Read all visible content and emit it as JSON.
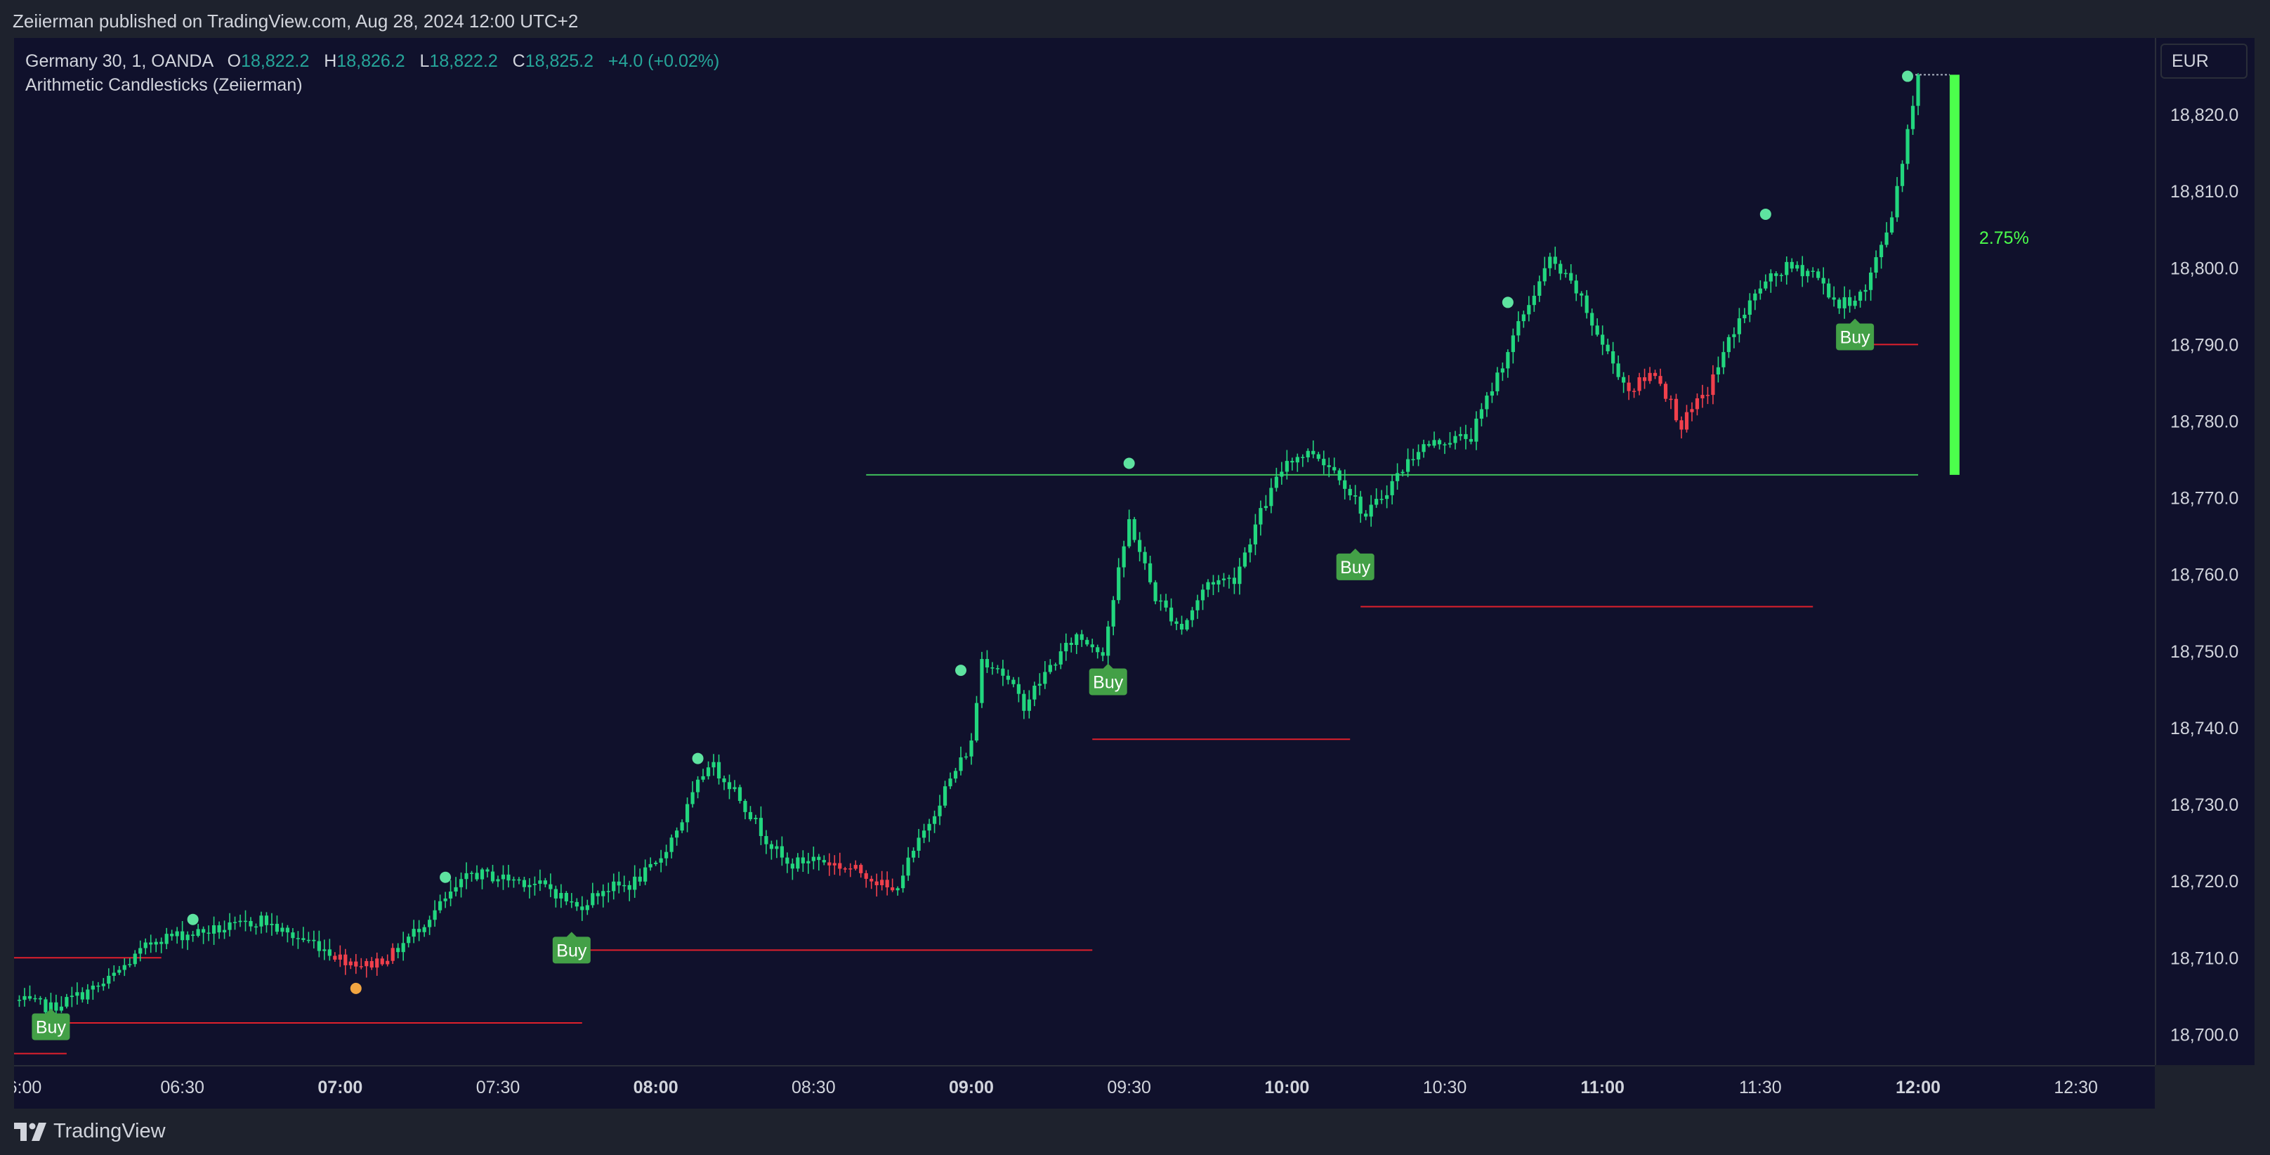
{
  "header": {
    "publish_text": "Zeiierman published on TradingView.com, Aug 28, 2024 12:00 UTC+2"
  },
  "legend": {
    "symbol": "Germany 30, 1, OANDA",
    "open_label": "O",
    "open": "18,822.2",
    "high_label": "H",
    "high": "18,826.2",
    "low_label": "L",
    "low": "18,822.2",
    "close_label": "C",
    "close": "18,825.2",
    "change": "+4.0 (+0.02%)",
    "indicator": "Arithmetic Candlesticks (Zeiierman)"
  },
  "price_axis": {
    "currency": "EUR"
  },
  "footer": {
    "brand": "TradingView"
  },
  "colors": {
    "bull": "#22d67e",
    "bear": "#f0404c",
    "buy_label_bg": "#43a047",
    "signal_dot": "#5ee3a0",
    "signal_dot_orange": "#f2a541",
    "stop_line": "#e0202c",
    "target_line": "#3fbf5a",
    "measure_bar": "#4cff4c"
  },
  "chart_data": {
    "type": "candlestick",
    "symbol": "Germany 30, 1, OANDA",
    "timeframe_minutes": 1,
    "x_range": [
      "05:58",
      "12:45"
    ],
    "ylim": [
      18696,
      18830
    ],
    "y_ticks": [
      "18,700.0",
      "18,710.0",
      "18,720.0",
      "18,730.0",
      "18,740.0",
      "18,750.0",
      "18,760.0",
      "18,770.0",
      "18,780.0",
      "18,790.0",
      "18,800.0",
      "18,810.0",
      "18,820.0"
    ],
    "x_ticks": [
      {
        "t": "06:00",
        "label": "6:00",
        "bold": false
      },
      {
        "t": "06:30",
        "label": "06:30",
        "bold": false
      },
      {
        "t": "07:00",
        "label": "07:00",
        "bold": true
      },
      {
        "t": "07:30",
        "label": "07:30",
        "bold": false
      },
      {
        "t": "08:00",
        "label": "08:00",
        "bold": true
      },
      {
        "t": "08:30",
        "label": "08:30",
        "bold": false
      },
      {
        "t": "09:00",
        "label": "09:00",
        "bold": true
      },
      {
        "t": "09:30",
        "label": "09:30",
        "bold": false
      },
      {
        "t": "10:00",
        "label": "10:00",
        "bold": true
      },
      {
        "t": "10:30",
        "label": "10:30",
        "bold": false
      },
      {
        "t": "11:00",
        "label": "11:00",
        "bold": true
      },
      {
        "t": "11:30",
        "label": "11:30",
        "bold": false
      },
      {
        "t": "12:00",
        "label": "12:00",
        "bold": true
      },
      {
        "t": "12:30",
        "label": "12:30",
        "bold": false
      }
    ],
    "close_path": [
      [
        "05:58",
        18704.5
      ],
      [
        "06:05",
        18703.5
      ],
      [
        "06:10",
        18705.0
      ],
      [
        "06:15",
        18706.5
      ],
      [
        "06:20",
        18709.5
      ],
      [
        "06:25",
        18712.5
      ],
      [
        "06:30",
        18713.0
      ],
      [
        "06:40",
        18714.0
      ],
      [
        "06:45",
        18715.0
      ],
      [
        "06:50",
        18713.0
      ],
      [
        "06:55",
        18712.0
      ],
      [
        "07:00",
        18710.0
      ],
      [
        "07:05",
        18709.0
      ],
      [
        "07:10",
        18710.5
      ],
      [
        "07:15",
        18714.0
      ],
      [
        "07:20",
        18717.5
      ],
      [
        "07:25",
        18721.0
      ],
      [
        "07:30",
        18720.5
      ],
      [
        "07:35",
        18720.0
      ],
      [
        "07:40",
        18719.0
      ],
      [
        "07:45",
        18716.5
      ],
      [
        "07:50",
        18719.0
      ],
      [
        "07:55",
        18719.5
      ],
      [
        "08:00",
        18722.0
      ],
      [
        "08:05",
        18728.0
      ],
      [
        "08:10",
        18735.5
      ],
      [
        "08:15",
        18732.0
      ],
      [
        "08:20",
        18726.5
      ],
      [
        "08:25",
        18722.0
      ],
      [
        "08:30",
        18723.0
      ],
      [
        "08:35",
        18722.0
      ],
      [
        "08:40",
        18721.0
      ],
      [
        "08:45",
        18718.5
      ],
      [
        "08:50",
        18725.0
      ],
      [
        "08:55",
        18732.0
      ],
      [
        "09:00",
        18738.0
      ],
      [
        "09:02",
        18749.0
      ],
      [
        "09:05",
        18748.0
      ],
      [
        "09:10",
        18743.0
      ],
      [
        "09:15",
        18748.0
      ],
      [
        "09:20",
        18752.0
      ],
      [
        "09:25",
        18750.0
      ],
      [
        "09:30",
        18767.0
      ],
      [
        "09:35",
        18757.0
      ],
      [
        "09:40",
        18753.0
      ],
      [
        "09:45",
        18759.0
      ],
      [
        "09:50",
        18759.5
      ],
      [
        "09:55",
        18768.0
      ],
      [
        "10:00",
        18775.0
      ],
      [
        "10:05",
        18776.0
      ],
      [
        "10:10",
        18773.0
      ],
      [
        "10:15",
        18767.5
      ],
      [
        "10:20",
        18772.0
      ],
      [
        "10:25",
        18776.5
      ],
      [
        "10:30",
        18777.5
      ],
      [
        "10:35",
        18778.0
      ],
      [
        "10:40",
        18786.0
      ],
      [
        "10:45",
        18794.0
      ],
      [
        "10:50",
        18801.0
      ],
      [
        "10:55",
        18797.0
      ],
      [
        "11:00",
        18790.0
      ],
      [
        "11:05",
        18784.0
      ],
      [
        "11:10",
        18786.5
      ],
      [
        "11:15",
        18779.5
      ],
      [
        "11:20",
        18784.0
      ],
      [
        "11:25",
        18792.0
      ],
      [
        "11:30",
        18797.5
      ],
      [
        "11:35",
        18800.0
      ],
      [
        "11:40",
        18799.5
      ],
      [
        "11:45",
        18795.0
      ],
      [
        "11:50",
        18797.0
      ],
      [
        "11:55",
        18807.0
      ],
      [
        "12:00",
        18825.2
      ]
    ],
    "bear_segments": [
      [
        "06:59",
        "07:10"
      ],
      [
        "08:33",
        "08:45"
      ],
      [
        "11:05",
        "11:21"
      ]
    ],
    "buy_signals": [
      {
        "t": "06:05",
        "price": 18701.0,
        "label": "Buy"
      },
      {
        "t": "07:44",
        "price": 18711.0,
        "label": "Buy"
      },
      {
        "t": "09:26",
        "price": 18746.0,
        "label": "Buy"
      },
      {
        "t": "10:13",
        "price": 18761.0,
        "label": "Buy"
      },
      {
        "t": "11:48",
        "price": 18791.0,
        "label": "Buy"
      }
    ],
    "stop_lines": [
      {
        "from": "05:58",
        "to": "06:08",
        "price": 18697.5
      },
      {
        "from": "05:58",
        "to": "06:26",
        "price": 18710.0
      },
      {
        "from": "06:08",
        "to": "07:46",
        "price": 18701.5
      },
      {
        "from": "07:46",
        "to": "09:23",
        "price": 18711.0
      },
      {
        "from": "09:23",
        "to": "10:12",
        "price": 18738.5
      },
      {
        "from": "10:14",
        "to": "11:40",
        "price": 18755.8
      },
      {
        "from": "11:50",
        "to": "12:00",
        "price": 18790.0
      }
    ],
    "target_line": {
      "from": "08:40",
      "to": "12:00",
      "price": 18773.0
    },
    "signal_dots": [
      {
        "t": "06:32",
        "price": 18715.0,
        "color": "green"
      },
      {
        "t": "07:03",
        "price": 18706.0,
        "color": "orange"
      },
      {
        "t": "07:20",
        "price": 18720.5,
        "color": "green"
      },
      {
        "t": "08:08",
        "price": 18736.0,
        "color": "green"
      },
      {
        "t": "08:58",
        "price": 18747.5,
        "color": "green"
      },
      {
        "t": "09:30",
        "price": 18774.5,
        "color": "green"
      },
      {
        "t": "10:42",
        "price": 18795.5,
        "color": "green"
      },
      {
        "t": "11:31",
        "price": 18807.0,
        "color": "green"
      },
      {
        "t": "11:58",
        "price": 18825.0,
        "color": "green"
      }
    ],
    "measure": {
      "low": 18773.0,
      "high": 18825.2,
      "label": "2.75%"
    }
  }
}
